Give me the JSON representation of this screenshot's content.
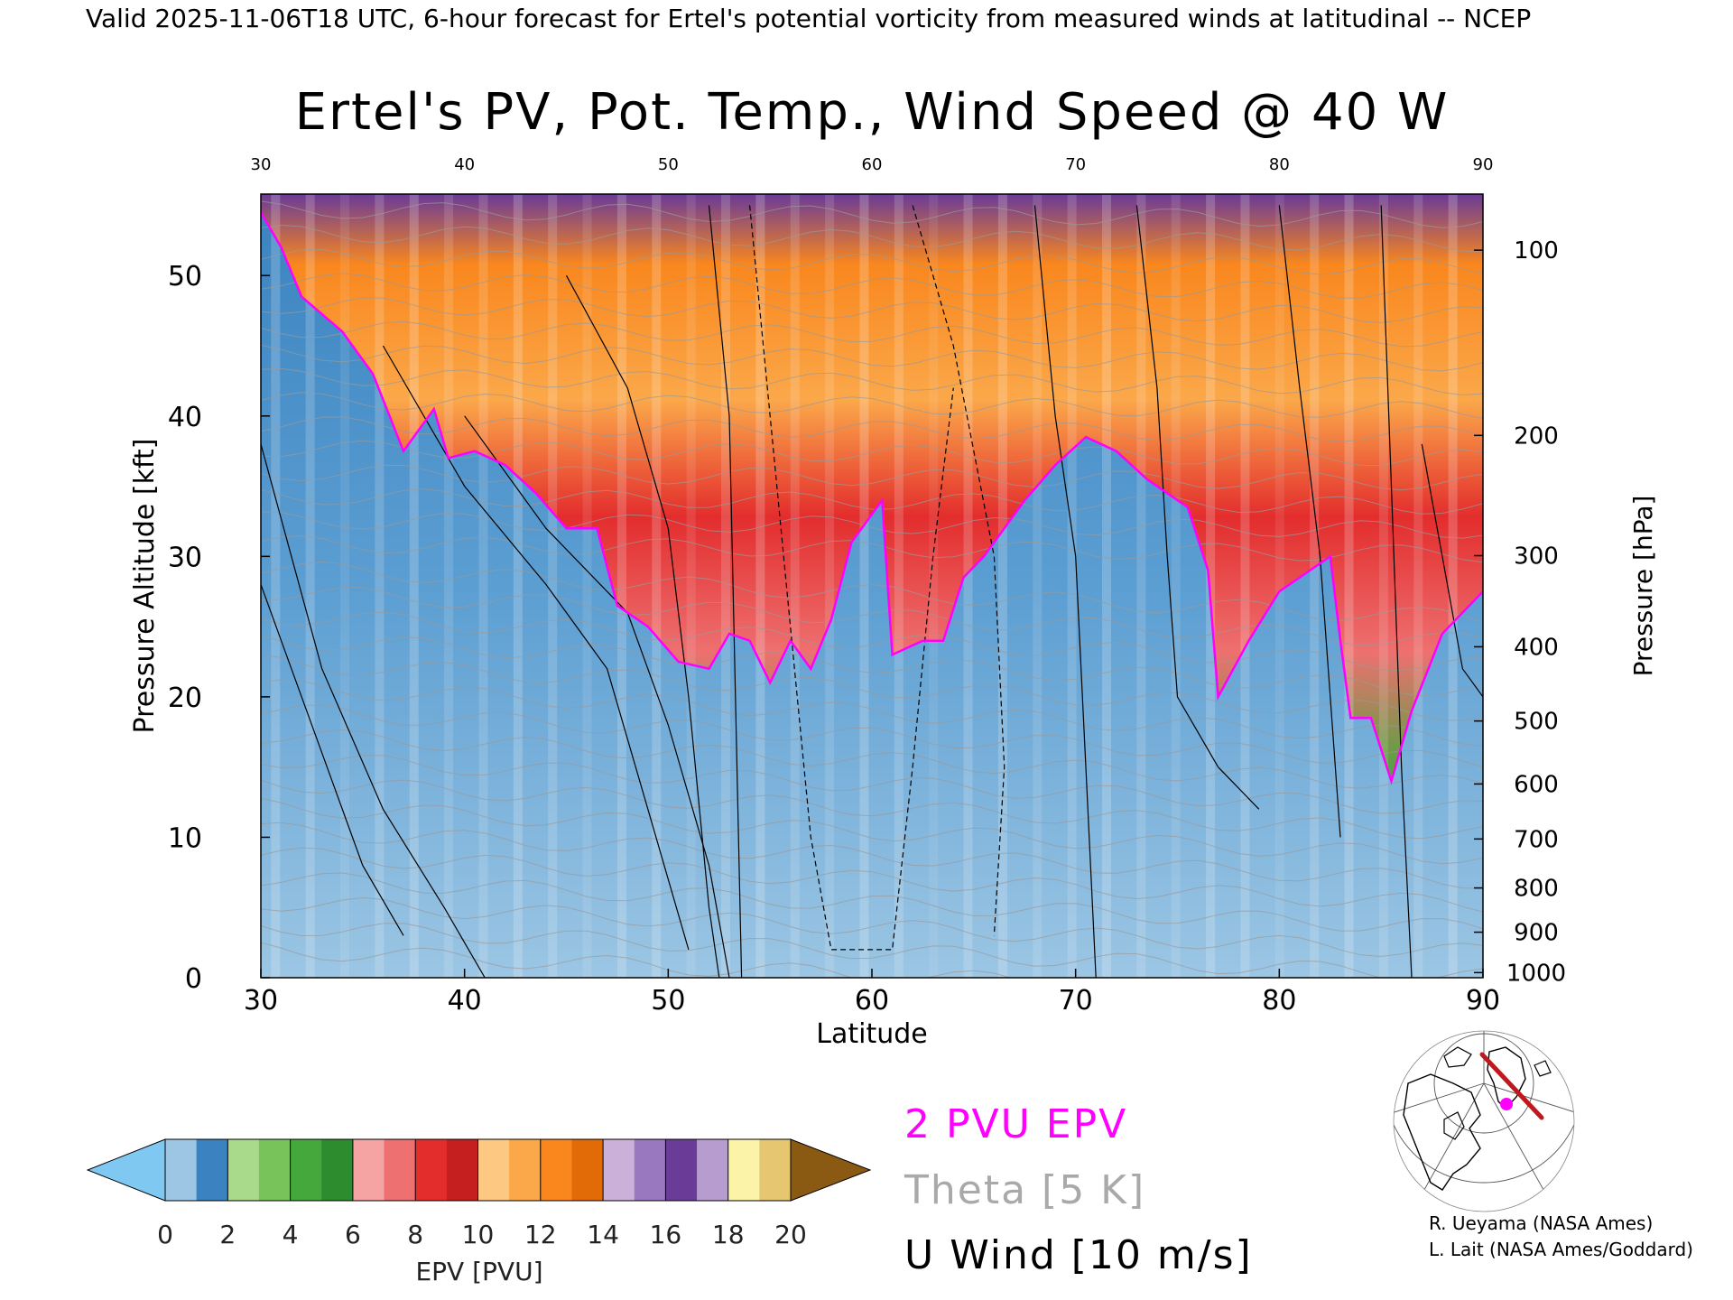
{
  "header": {
    "valid_line": "Valid 2025-11-06T18 UTC, 6-hour forecast for Ertel's potential vorticity from measured winds at latitudinal -- NCEP"
  },
  "chart_data": {
    "type": "heatmap",
    "title": "Ertel's PV, Pot. Temp., Wind Speed @ 40 W",
    "xlabel": "Latitude",
    "ylabel": "Pressure Altitude [kft]",
    "ylabel_right": "Pressure [hPa]",
    "xlim": [
      30,
      90
    ],
    "ylim": [
      0,
      55.8
    ],
    "x_ticks": [
      "30",
      "40",
      "50",
      "60",
      "70",
      "80",
      "90"
    ],
    "x_ticks_top": [
      "30",
      "40",
      "50",
      "60",
      "70",
      "80",
      "90"
    ],
    "y_ticks_kft": [
      0,
      10,
      20,
      30,
      40,
      50
    ],
    "y_ticks_kft_labels": [
      "0",
      "10",
      "20",
      "30",
      "40",
      "50"
    ],
    "pressure_ticks": [
      {
        "hpa": 1000,
        "label": "1000"
      },
      {
        "hpa": 900,
        "label": "900"
      },
      {
        "hpa": 800,
        "label": "800"
      },
      {
        "hpa": 700,
        "label": "700"
      },
      {
        "hpa": 600,
        "label": "600"
      },
      {
        "hpa": 500,
        "label": "500"
      },
      {
        "hpa": 400,
        "label": "400"
      },
      {
        "hpa": 300,
        "label": "300"
      },
      {
        "hpa": 200,
        "label": "200"
      },
      {
        "hpa": 100,
        "label": "100"
      }
    ],
    "pv2_tropopause_kft": [
      {
        "lat": 30.0,
        "kft": 54.5
      },
      {
        "lat": 31.0,
        "kft": 52.0
      },
      {
        "lat": 32.0,
        "kft": 48.5
      },
      {
        "lat": 34.0,
        "kft": 46.0
      },
      {
        "lat": 35.5,
        "kft": 43.0
      },
      {
        "lat": 37.0,
        "kft": 37.5
      },
      {
        "lat": 38.5,
        "kft": 40.5
      },
      {
        "lat": 39.2,
        "kft": 37.0
      },
      {
        "lat": 40.5,
        "kft": 37.5
      },
      {
        "lat": 42.0,
        "kft": 36.5
      },
      {
        "lat": 43.5,
        "kft": 34.5
      },
      {
        "lat": 45.0,
        "kft": 32.0
      },
      {
        "lat": 46.5,
        "kft": 32.0
      },
      {
        "lat": 47.5,
        "kft": 26.5
      },
      {
        "lat": 49.0,
        "kft": 25.0
      },
      {
        "lat": 50.5,
        "kft": 22.5
      },
      {
        "lat": 52.0,
        "kft": 22.0
      },
      {
        "lat": 53.0,
        "kft": 24.5
      },
      {
        "lat": 54.0,
        "kft": 24.0
      },
      {
        "lat": 55.0,
        "kft": 21.0
      },
      {
        "lat": 56.0,
        "kft": 24.0
      },
      {
        "lat": 57.0,
        "kft": 22.0
      },
      {
        "lat": 58.0,
        "kft": 25.5
      },
      {
        "lat": 59.0,
        "kft": 31.0
      },
      {
        "lat": 60.5,
        "kft": 34.0
      },
      {
        "lat": 61.0,
        "kft": 23.0
      },
      {
        "lat": 62.5,
        "kft": 24.0
      },
      {
        "lat": 63.5,
        "kft": 24.0
      },
      {
        "lat": 64.5,
        "kft": 28.5
      },
      {
        "lat": 65.5,
        "kft": 30.0
      },
      {
        "lat": 67.5,
        "kft": 34.0
      },
      {
        "lat": 69.0,
        "kft": 36.5
      },
      {
        "lat": 70.5,
        "kft": 38.5
      },
      {
        "lat": 72.0,
        "kft": 37.5
      },
      {
        "lat": 73.5,
        "kft": 35.5
      },
      {
        "lat": 75.5,
        "kft": 33.5
      },
      {
        "lat": 76.5,
        "kft": 29.0
      },
      {
        "lat": 77.0,
        "kft": 20.0
      },
      {
        "lat": 78.5,
        "kft": 24.0
      },
      {
        "lat": 80.0,
        "kft": 27.5
      },
      {
        "lat": 81.5,
        "kft": 29.0
      },
      {
        "lat": 82.5,
        "kft": 30.0
      },
      {
        "lat": 83.0,
        "kft": 24.0
      },
      {
        "lat": 83.5,
        "kft": 18.5
      },
      {
        "lat": 84.5,
        "kft": 18.5
      },
      {
        "lat": 85.5,
        "kft": 14.0
      },
      {
        "lat": 86.5,
        "kft": 19.0
      },
      {
        "lat": 88.0,
        "kft": 24.5
      },
      {
        "lat": 90.0,
        "kft": 27.5
      }
    ],
    "colorbar": {
      "label": "EPV [PVU]",
      "tick_labels": [
        "0",
        "2",
        "4",
        "6",
        "8",
        "10",
        "12",
        "14",
        "16",
        "18",
        "20"
      ],
      "under_color": "#7ec8f2",
      "over_color": "#8a5a13",
      "bins": [
        {
          "from": 0,
          "to": 1,
          "color": "#9cc6e4"
        },
        {
          "from": 1,
          "to": 2,
          "color": "#3a83c0"
        },
        {
          "from": 2,
          "to": 3,
          "color": "#a9d98a"
        },
        {
          "from": 3,
          "to": 4,
          "color": "#78c35a"
        },
        {
          "from": 4,
          "to": 5,
          "color": "#45a83c"
        },
        {
          "from": 5,
          "to": 6,
          "color": "#2c8c2e"
        },
        {
          "from": 6,
          "to": 7,
          "color": "#f5a3a3"
        },
        {
          "from": 7,
          "to": 8,
          "color": "#ee7070"
        },
        {
          "from": 8,
          "to": 9,
          "color": "#e32d2d"
        },
        {
          "from": 9,
          "to": 10,
          "color": "#c51f1f"
        },
        {
          "from": 10,
          "to": 11,
          "color": "#fdc882"
        },
        {
          "from": 11,
          "to": 12,
          "color": "#fba84a"
        },
        {
          "from": 12,
          "to": 13,
          "color": "#f9871e"
        },
        {
          "from": 13,
          "to": 14,
          "color": "#e26b07"
        },
        {
          "from": 14,
          "to": 15,
          "color": "#cbb1da"
        },
        {
          "from": 15,
          "to": 16,
          "color": "#9a78c0"
        },
        {
          "from": 16,
          "to": 17,
          "color": "#6a3b97"
        },
        {
          "from": 17,
          "to": 18,
          "color": "#b79cd0"
        },
        {
          "from": 18,
          "to": 19,
          "color": "#fbf4a8"
        },
        {
          "from": 19,
          "to": 20,
          "color": "#e6c670"
        }
      ]
    },
    "legend": [
      {
        "text": "2 PVU EPV",
        "color": "#ff00ff"
      },
      {
        "text": "Theta [5 K]",
        "color": "#a9a9a9"
      },
      {
        "text": "U Wind [10 m/s]",
        "color": "#000000"
      }
    ],
    "colors": {
      "pv_contour": "#ff00ff",
      "theta_contour": "#9a9a9a",
      "wind_contour": "#000000",
      "troposphere_low": "#9cc6e4",
      "troposphere_mid": "#4a92cc"
    }
  },
  "locator_map": {
    "cross_section_color": "#c0181e",
    "marker_color": "#ff00ff"
  },
  "credits": [
    "R. Ueyama (NASA Ames)",
    "L. Lait (NASA Ames/Goddard)"
  ]
}
